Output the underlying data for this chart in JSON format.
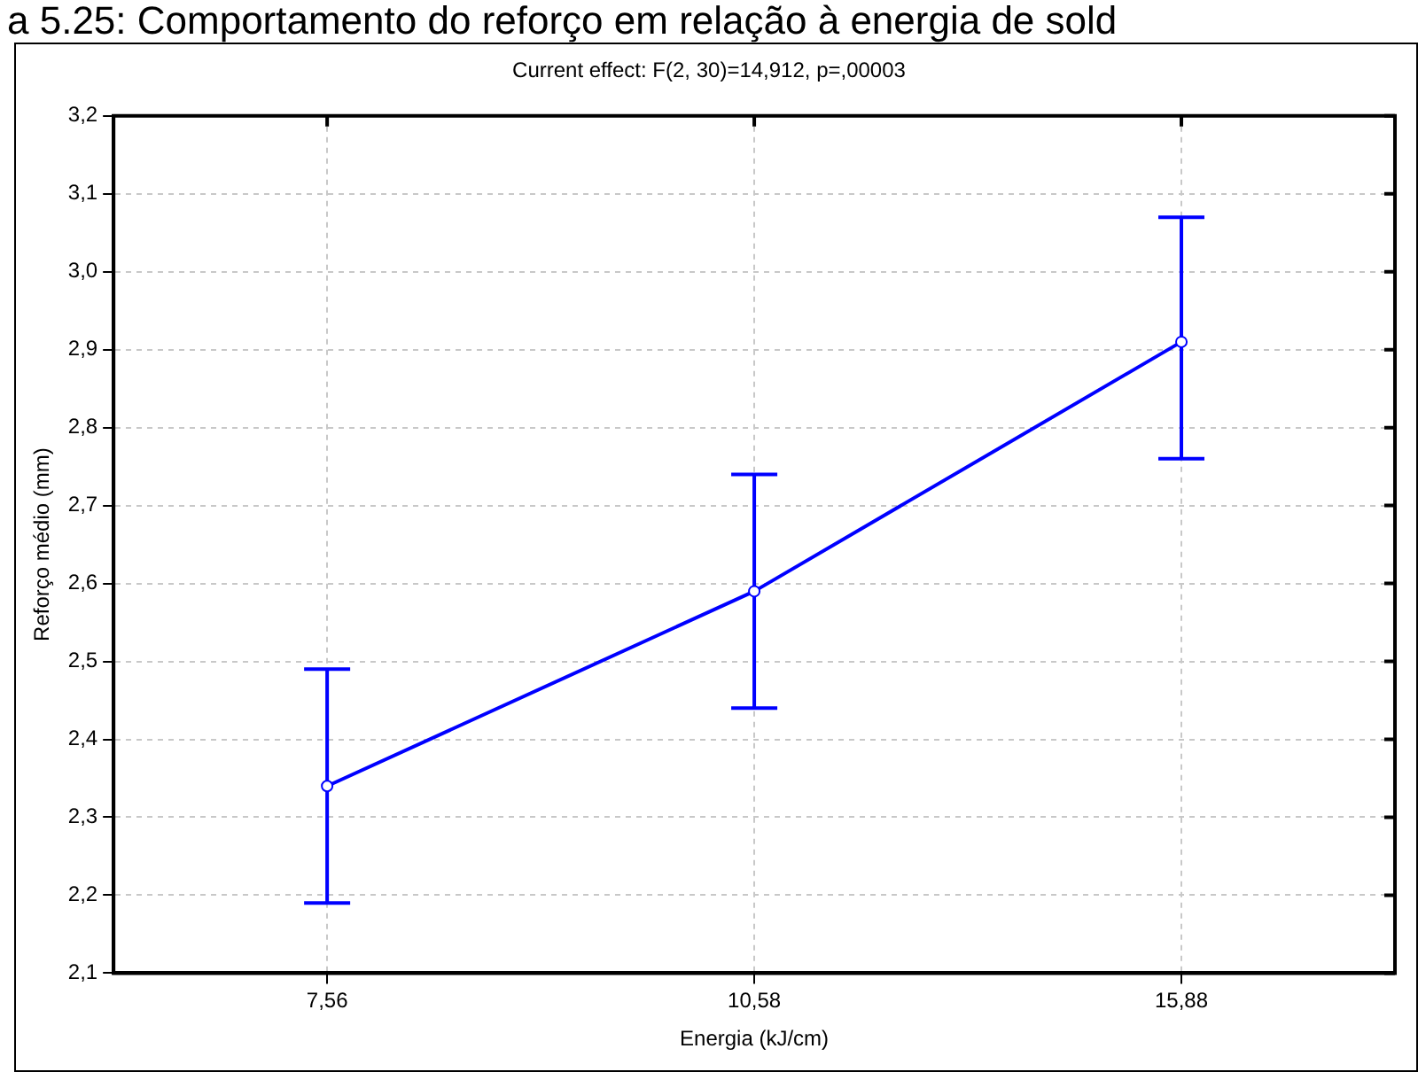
{
  "chart_data": {
    "type": "line",
    "subtitle": "a 5.25: Comportamento do reforço em relação à energia de sold",
    "title": "Current effect: F(2, 30)=14,912, p=,00003",
    "xlabel": "Energia (kJ/cm)",
    "ylabel": "Reforço médio (mm)",
    "categories": [
      "7,56",
      "10,58",
      "15,88"
    ],
    "series": [
      {
        "color": "#0000ff",
        "values": [
          2.34,
          2.59,
          2.91
        ],
        "errors": [
          [
            2.19,
            2.49
          ],
          [
            2.44,
            2.74
          ],
          [
            2.76,
            3.07
          ]
        ]
      }
    ],
    "ylim": [
      2.1,
      3.2
    ],
    "yticks": [
      {
        "value": 2.1,
        "label": "2,1"
      },
      {
        "value": 2.2,
        "label": "2,2"
      },
      {
        "value": 2.3,
        "label": "2,3"
      },
      {
        "value": 2.4,
        "label": "2,4"
      },
      {
        "value": 2.5,
        "label": "2,5"
      },
      {
        "value": 2.6,
        "label": "2,6"
      },
      {
        "value": 2.7,
        "label": "2,7"
      },
      {
        "value": 2.8,
        "label": "2,8"
      },
      {
        "value": 2.9,
        "label": "2,9"
      },
      {
        "value": 3.0,
        "label": "3,0"
      },
      {
        "value": 3.1,
        "label": "3,1"
      },
      {
        "value": 3.2,
        "label": "3,2"
      }
    ],
    "grid": true,
    "marker": "circle",
    "line_style": "solid",
    "legend": false
  }
}
